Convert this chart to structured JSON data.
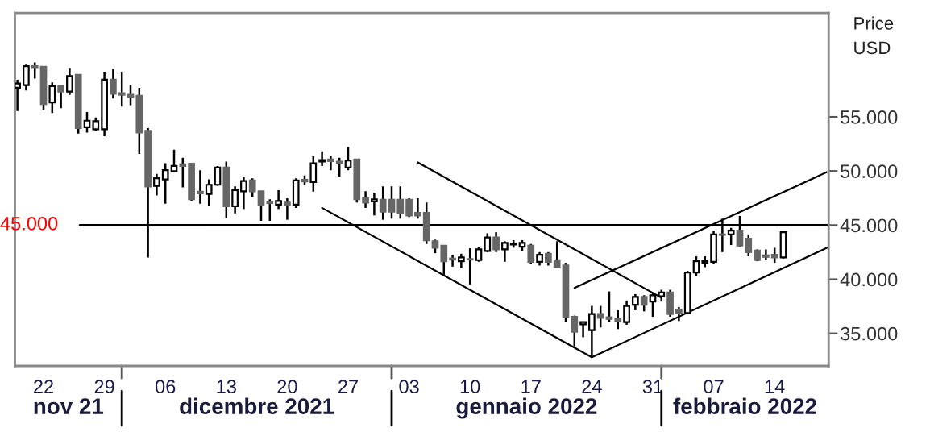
{
  "chart_data": {
    "type": "candlestick",
    "ylabel": "Price\nUSD",
    "x": [
      "2021-11-19",
      "2021-11-20",
      "2021-11-21",
      "2021-11-22",
      "2021-11-23",
      "2021-11-24",
      "2021-11-25",
      "2021-11-26",
      "2021-11-27",
      "2021-11-28",
      "2021-11-29",
      "2021-11-30",
      "2021-12-01",
      "2021-12-02",
      "2021-12-03",
      "2021-12-04",
      "2021-12-05",
      "2021-12-06",
      "2021-12-07",
      "2021-12-08",
      "2021-12-09",
      "2021-12-10",
      "2021-12-11",
      "2021-12-12",
      "2021-12-13",
      "2021-12-14",
      "2021-12-15",
      "2021-12-16",
      "2021-12-17",
      "2021-12-18",
      "2021-12-19",
      "2021-12-20",
      "2021-12-21",
      "2021-12-22",
      "2021-12-23",
      "2021-12-24",
      "2021-12-25",
      "2021-12-26",
      "2021-12-27",
      "2021-12-28",
      "2021-12-29",
      "2021-12-30",
      "2021-12-31",
      "2022-01-01",
      "2022-01-02",
      "2022-01-03",
      "2022-01-04",
      "2022-01-05",
      "2022-01-06",
      "2022-01-07",
      "2022-01-08",
      "2022-01-09",
      "2022-01-10",
      "2022-01-11",
      "2022-01-12",
      "2022-01-13",
      "2022-01-14",
      "2022-01-15",
      "2022-01-16",
      "2022-01-17",
      "2022-01-18",
      "2022-01-19",
      "2022-01-20",
      "2022-01-21",
      "2022-01-22",
      "2022-01-23",
      "2022-01-24",
      "2022-01-25",
      "2022-01-26",
      "2022-01-27",
      "2022-01-28",
      "2022-01-29",
      "2022-01-30",
      "2022-01-31",
      "2022-02-01",
      "2022-02-02",
      "2022-02-03",
      "2022-02-04",
      "2022-02-05",
      "2022-02-06",
      "2022-02-07",
      "2022-02-08",
      "2022-02-09",
      "2022-02-10",
      "2022-02-11",
      "2022-02-12",
      "2022-02-13",
      "2022-02-14",
      "2022-02-15"
    ],
    "ohlc": [
      [
        57690,
        58430,
        55550,
        58080
      ],
      [
        57940,
        59830,
        57440,
        59680
      ],
      [
        59680,
        60030,
        58530,
        59580
      ],
      [
        59630,
        59680,
        55600,
        56190
      ],
      [
        56340,
        58180,
        55350,
        57840
      ],
      [
        57840,
        57840,
        55800,
        57340
      ],
      [
        57340,
        59530,
        57040,
        58780
      ],
      [
        58880,
        58880,
        53460,
        53960
      ],
      [
        54050,
        55450,
        53560,
        54650
      ],
      [
        53860,
        54950,
        53710,
        54600
      ],
      [
        53860,
        59180,
        53210,
        58430
      ],
      [
        58430,
        59430,
        56690,
        57140
      ],
      [
        57190,
        59180,
        55950,
        57040
      ],
      [
        57040,
        57940,
        56090,
        56840
      ],
      [
        56940,
        57690,
        51570,
        53560
      ],
      [
        53710,
        53960,
        42020,
        48580
      ],
      [
        48630,
        49730,
        47740,
        49330
      ],
      [
        49230,
        50720,
        46990,
        50080
      ],
      [
        49980,
        51970,
        49880,
        50470
      ],
      [
        50620,
        51220,
        48480,
        50470
      ],
      [
        50670,
        50670,
        47240,
        47390
      ],
      [
        48090,
        50080,
        46990,
        47940
      ],
      [
        47890,
        49230,
        46740,
        48730
      ],
      [
        48730,
        50470,
        48630,
        50320
      ],
      [
        50320,
        50870,
        45650,
        46740
      ],
      [
        46740,
        48580,
        46090,
        48230
      ],
      [
        48130,
        49480,
        46490,
        49080
      ],
      [
        49130,
        49330,
        47590,
        48130
      ],
      [
        48130,
        48130,
        45400,
        46840
      ],
      [
        47140,
        47390,
        45400,
        47040
      ],
      [
        46890,
        48230,
        46490,
        47240
      ],
      [
        47090,
        47490,
        45500,
        46890
      ],
      [
        46890,
        49330,
        46590,
        49130
      ],
      [
        49180,
        49580,
        48730,
        49030
      ],
      [
        48980,
        51370,
        48090,
        50720
      ],
      [
        50870,
        51820,
        50470,
        51020
      ],
      [
        51070,
        51370,
        50080,
        50920
      ],
      [
        50870,
        51220,
        49480,
        50770
      ],
      [
        50320,
        52210,
        50080,
        50970
      ],
      [
        51070,
        51070,
        47090,
        47390
      ],
      [
        47490,
        48130,
        46590,
        47090
      ],
      [
        47190,
        47990,
        45900,
        47390
      ],
      [
        47340,
        48580,
        45500,
        46240
      ],
      [
        47340,
        48580,
        45600,
        46240
      ],
      [
        47340,
        48580,
        45600,
        46140
      ],
      [
        47340,
        47490,
        45750,
        45900
      ],
      [
        46140,
        47490,
        45600,
        45900
      ],
      [
        46140,
        47090,
        43260,
        43610
      ],
      [
        43510,
        43660,
        42410,
        42910
      ],
      [
        43110,
        43110,
        40420,
        41670
      ],
      [
        41920,
        42270,
        41170,
        41820
      ],
      [
        41670,
        42360,
        41020,
        42020
      ],
      [
        41870,
        42860,
        39530,
        41820
      ],
      [
        41770,
        43010,
        41620,
        42760
      ],
      [
        42610,
        44250,
        42510,
        43860
      ],
      [
        43860,
        44350,
        42510,
        42760
      ],
      [
        42760,
        43510,
        41620,
        43360
      ],
      [
        43210,
        43610,
        42910,
        43310
      ],
      [
        43010,
        43610,
        42610,
        43360
      ],
      [
        43110,
        43260,
        41420,
        41620
      ],
      [
        41620,
        42510,
        41270,
        42270
      ],
      [
        42360,
        42510,
        41270,
        41620
      ],
      [
        41770,
        43510,
        41170,
        41170
      ],
      [
        41270,
        41520,
        36050,
        36540
      ],
      [
        36540,
        36640,
        33810,
        35150
      ],
      [
        35850,
        36050,
        34650,
        36050
      ],
      [
        35300,
        37540,
        32810,
        36790
      ],
      [
        36790,
        37540,
        35550,
        36440
      ],
      [
        36490,
        38880,
        36050,
        36340
      ],
      [
        36340,
        37140,
        35400,
        36150
      ],
      [
        36050,
        38040,
        35800,
        37540
      ],
      [
        37640,
        38630,
        37140,
        38380
      ],
      [
        38380,
        38530,
        37040,
        37640
      ],
      [
        37940,
        38780,
        36540,
        38530
      ],
      [
        38430,
        39030,
        37940,
        38780
      ],
      [
        38780,
        39030,
        36540,
        36790
      ],
      [
        37140,
        37440,
        36150,
        36890
      ],
      [
        36890,
        40770,
        36790,
        40620
      ],
      [
        40620,
        42120,
        40270,
        41670
      ],
      [
        41520,
        42120,
        41120,
        41670
      ],
      [
        41620,
        44500,
        41420,
        44150
      ],
      [
        44150,
        45600,
        42510,
        44100
      ],
      [
        44150,
        44750,
        43160,
        44500
      ],
      [
        44500,
        45850,
        43010,
        43110
      ],
      [
        43760,
        44150,
        42120,
        42510
      ],
      [
        42660,
        42760,
        41670,
        41770
      ],
      [
        42210,
        42760,
        41770,
        42070
      ],
      [
        42270,
        42910,
        41520,
        42020
      ],
      [
        42020,
        44350,
        41920,
        44350
      ]
    ],
    "series": [
      {
        "type": "line",
        "color": "#000000",
        "x": [
          "2021-12-24",
          "2022-01-24"
        ],
        "values": [
          46600,
          32800
        ]
      },
      {
        "type": "line",
        "color": "#000000",
        "x": [
          "2022-01-04",
          "2022-02-01"
        ],
        "values": [
          50800,
          38300
        ]
      },
      {
        "type": "line",
        "color": "#000000",
        "x": [
          "2022-01-22",
          "2022-02-20"
        ],
        "values": [
          39200,
          49900
        ]
      },
      {
        "type": "line",
        "color": "#000000",
        "x": [
          "2022-01-24",
          "2022-02-20"
        ],
        "values": [
          32800,
          42900
        ]
      }
    ],
    "xlim": [
      "2021-11-18T17:00",
      "2022-02-20T05:00"
    ],
    "xticks": [
      {
        "value": "2021-11-22",
        "label": "22"
      },
      {
        "value": "2021-11-29",
        "label": "29"
      },
      {
        "value": "2021-12-01",
        "label": null
      },
      {
        "value": "2021-12-06",
        "label": "06"
      },
      {
        "value": "2021-12-13",
        "label": "13"
      },
      {
        "value": "2021-12-20",
        "label": "20"
      },
      {
        "value": "2021-12-27",
        "label": "27"
      },
      {
        "value": "2022-01-01",
        "label": null
      },
      {
        "value": "2022-01-03",
        "label": "03"
      },
      {
        "value": "2022-01-10",
        "label": "10"
      },
      {
        "value": "2022-01-17",
        "label": "17"
      },
      {
        "value": "2022-01-24",
        "label": "24"
      },
      {
        "value": "2022-01-31",
        "label": "31"
      },
      {
        "value": "2022-02-01",
        "label": null
      },
      {
        "value": "2022-02-07",
        "label": "07"
      },
      {
        "value": "2022-02-14",
        "label": "14"
      }
    ],
    "ylim": [
      32000,
      64600
    ],
    "yticks": [
      {
        "value": 35000,
        "label": "35.000"
      },
      {
        "value": 40000,
        "label": "40.000"
      },
      {
        "value": 45000,
        "label": "45.000"
      },
      {
        "value": 50000,
        "label": "50.000"
      },
      {
        "value": 55000,
        "label": "55.000"
      }
    ],
    "ref_lines": [
      {
        "axis": "y",
        "value": 45000,
        "label": "45.000",
        "color": "#000000"
      }
    ],
    "annotations": [
      "nov 21",
      "dicembre 2021",
      "gennaio 2022",
      "febbraio 2022"
    ]
  }
}
